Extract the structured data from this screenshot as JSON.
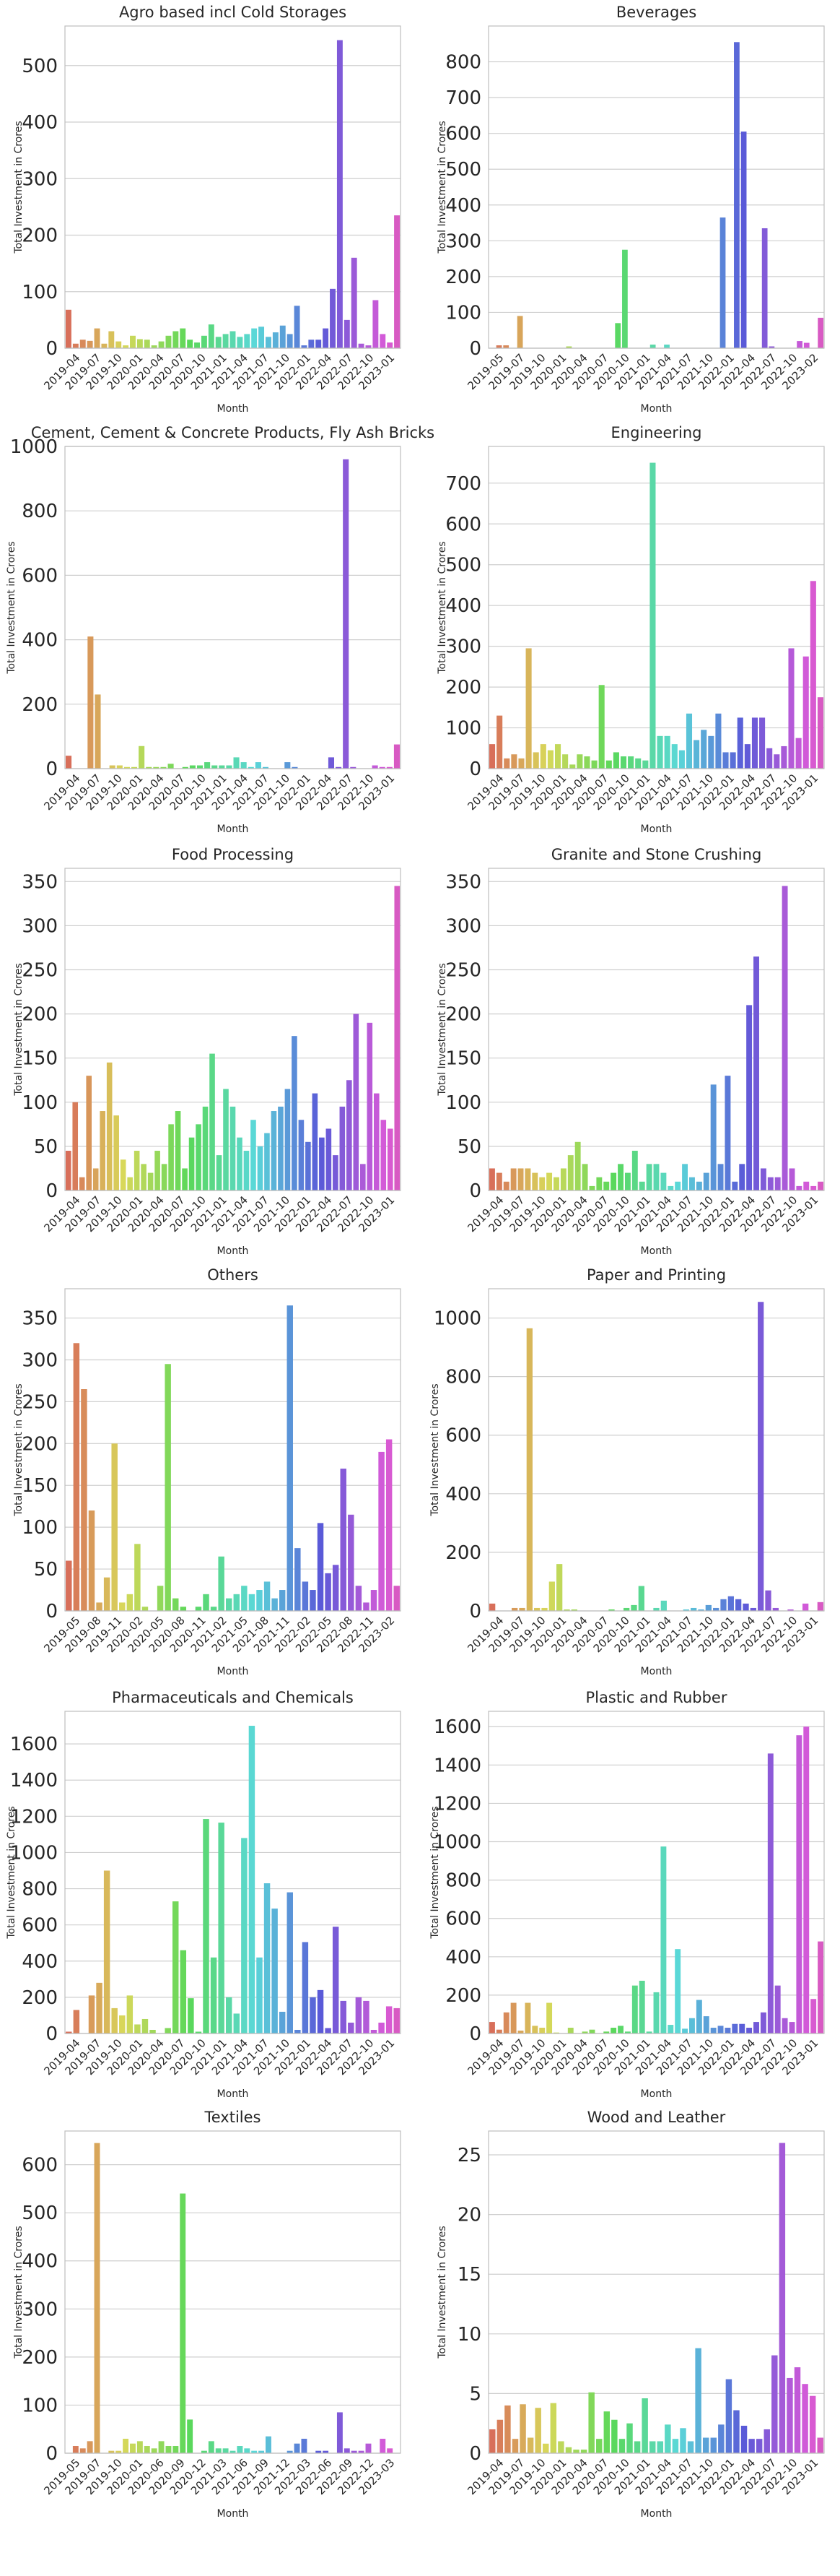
{
  "figure": {
    "ylabel": "Total Investment in Crores",
    "xlabel": "Month"
  },
  "chart_data": [
    {
      "type": "bar",
      "title": "Agro based incl Cold Storages",
      "xlabel": "Month",
      "ylabel": "Total Investment in Crores",
      "ylim": [
        0,
        570
      ],
      "yticks": [
        0,
        100,
        200,
        300,
        400,
        500
      ],
      "tick_labels": [
        "2019-04",
        "2019-07",
        "2019-10",
        "2020-01",
        "2020-04",
        "2020-07",
        "2020-10",
        "2021-01",
        "2021-04",
        "2021-07",
        "2021-10",
        "2022-01",
        "2022-04",
        "2022-07",
        "2022-10",
        "2023-01"
      ],
      "values": [
        68,
        8,
        15,
        13,
        35,
        8,
        30,
        12,
        5,
        22,
        16,
        15,
        5,
        12,
        22,
        30,
        35,
        15,
        10,
        22,
        42,
        20,
        25,
        30,
        20,
        25,
        35,
        38,
        20,
        28,
        40,
        25,
        75,
        5,
        15,
        15,
        35,
        105,
        545,
        50,
        160,
        8,
        5,
        85,
        25,
        10,
        235
      ]
    },
    {
      "type": "bar",
      "title": "Beverages",
      "xlabel": "Month",
      "ylabel": "Total Investment in Crores",
      "ylim": [
        0,
        900
      ],
      "yticks": [
        0,
        100,
        200,
        300,
        400,
        500,
        600,
        700,
        800
      ],
      "tick_labels": [
        "2019-05",
        "2019-07",
        "2019-10",
        "2020-01",
        "2020-04",
        "2020-07",
        "2020-10",
        "2021-01",
        "2021-04",
        "2021-07",
        "2021-10",
        "2022-01",
        "2022-04",
        "2022-07",
        "2022-10",
        "2023-02"
      ],
      "values": [
        0,
        8,
        8,
        0,
        90,
        0,
        0,
        0,
        0,
        0,
        0,
        5,
        0,
        0,
        0,
        0,
        0,
        0,
        70,
        275,
        0,
        0,
        0,
        10,
        0,
        10,
        0,
        0,
        0,
        0,
        0,
        0,
        0,
        365,
        0,
        855,
        605,
        0,
        0,
        335,
        5,
        0,
        0,
        0,
        20,
        15,
        0,
        85
      ]
    },
    {
      "type": "bar",
      "title": "Cement, Cement & Concrete Products, Fly Ash Bricks",
      "xlabel": "Month",
      "ylabel": "Total Investment in Crores",
      "ylim": [
        0,
        1000
      ],
      "yticks": [
        0,
        200,
        400,
        600,
        800,
        1000
      ],
      "tick_labels": [
        "2019-04",
        "2019-07",
        "2019-10",
        "2020-01",
        "2020-04",
        "2020-07",
        "2020-10",
        "2021-01",
        "2021-04",
        "2021-07",
        "2021-10",
        "2022-01",
        "2022-04",
        "2022-07",
        "2022-10",
        "2023-01"
      ],
      "values": [
        40,
        0,
        0,
        410,
        230,
        0,
        10,
        10,
        5,
        5,
        70,
        5,
        5,
        5,
        15,
        0,
        5,
        10,
        10,
        20,
        10,
        10,
        10,
        35,
        20,
        5,
        20,
        5,
        0,
        0,
        20,
        5,
        0,
        0,
        0,
        0,
        35,
        5,
        960,
        5,
        0,
        0,
        10,
        5,
        5,
        75
      ]
    },
    {
      "type": "bar",
      "title": "Engineering",
      "xlabel": "Month",
      "ylabel": "Total Investment in Crores",
      "ylim": [
        0,
        790
      ],
      "yticks": [
        0,
        100,
        200,
        300,
        400,
        500,
        600,
        700
      ],
      "tick_labels": [
        "2019-04",
        "2019-07",
        "2019-10",
        "2020-01",
        "2020-04",
        "2020-07",
        "2020-10",
        "2021-01",
        "2021-04",
        "2021-07",
        "2021-10",
        "2022-01",
        "2022-04",
        "2022-07",
        "2022-10",
        "2023-01"
      ],
      "values": [
        60,
        130,
        25,
        35,
        25,
        295,
        40,
        60,
        45,
        60,
        35,
        10,
        35,
        30,
        20,
        205,
        20,
        40,
        30,
        30,
        25,
        20,
        750,
        80,
        80,
        60,
        45,
        135,
        70,
        95,
        80,
        135,
        40,
        40,
        125,
        60,
        125,
        125,
        50,
        35,
        55,
        295,
        75,
        275,
        460,
        175
      ]
    },
    {
      "type": "bar",
      "title": "Food Processing",
      "xlabel": "Month",
      "ylabel": "Total Investment in Crores",
      "ylim": [
        0,
        365
      ],
      "yticks": [
        0,
        50,
        100,
        150,
        200,
        250,
        300,
        350
      ],
      "tick_labels": [
        "2019-04",
        "2019-07",
        "2019-10",
        "2020-01",
        "2020-04",
        "2020-07",
        "2020-10",
        "2021-01",
        "2021-04",
        "2021-07",
        "2021-10",
        "2022-01",
        "2022-04",
        "2022-07",
        "2022-10",
        "2023-01"
      ],
      "values": [
        45,
        100,
        15,
        130,
        25,
        90,
        145,
        85,
        35,
        15,
        45,
        30,
        20,
        45,
        30,
        75,
        90,
        25,
        60,
        75,
        95,
        155,
        40,
        115,
        95,
        60,
        45,
        80,
        50,
        65,
        90,
        95,
        115,
        175,
        80,
        55,
        110,
        60,
        70,
        40,
        95,
        125,
        200,
        30,
        190,
        110,
        80,
        70,
        345
      ]
    },
    {
      "type": "bar",
      "title": "Granite and Stone Crushing",
      "xlabel": "Month",
      "ylabel": "Total Investment in Crores",
      "ylim": [
        0,
        365
      ],
      "yticks": [
        0,
        50,
        100,
        150,
        200,
        250,
        300,
        350
      ],
      "tick_labels": [
        "2019-04",
        "2019-07",
        "2019-10",
        "2020-01",
        "2020-04",
        "2020-07",
        "2020-10",
        "2021-01",
        "2021-04",
        "2021-07",
        "2021-10",
        "2022-01",
        "2022-04",
        "2022-07",
        "2022-10",
        "2023-01"
      ],
      "values": [
        25,
        20,
        10,
        25,
        25,
        25,
        20,
        15,
        20,
        15,
        25,
        40,
        55,
        30,
        5,
        15,
        10,
        20,
        30,
        20,
        45,
        10,
        30,
        30,
        20,
        5,
        10,
        30,
        15,
        10,
        20,
        120,
        30,
        130,
        10,
        30,
        210,
        265,
        25,
        15,
        15,
        345,
        25,
        5,
        10,
        5,
        10
      ]
    },
    {
      "type": "bar",
      "title": "Others",
      "xlabel": "Month",
      "ylabel": "Total Investment in Crores",
      "ylim": [
        0,
        385
      ],
      "yticks": [
        0,
        50,
        100,
        150,
        200,
        250,
        300,
        350
      ],
      "tick_labels": [
        "2019-05",
        "2019-08",
        "2019-11",
        "2020-02",
        "2020-05",
        "2020-08",
        "2020-11",
        "2021-02",
        "2021-05",
        "2021-08",
        "2021-11",
        "2022-02",
        "2022-05",
        "2022-08",
        "2022-11",
        "2023-02"
      ],
      "values": [
        60,
        320,
        265,
        120,
        10,
        40,
        200,
        10,
        20,
        80,
        5,
        0,
        30,
        295,
        15,
        5,
        0,
        5,
        20,
        5,
        65,
        15,
        20,
        30,
        20,
        25,
        35,
        15,
        25,
        365,
        75,
        35,
        25,
        105,
        45,
        55,
        170,
        115,
        30,
        10,
        25,
        190,
        205,
        30
      ]
    },
    {
      "type": "bar",
      "title": "Paper and Printing",
      "xlabel": "Month",
      "ylabel": "Total Investment in Crores",
      "ylim": [
        0,
        1100
      ],
      "yticks": [
        0,
        200,
        400,
        600,
        800,
        1000
      ],
      "tick_labels": [
        "2019-04",
        "2019-07",
        "2019-10",
        "2020-01",
        "2020-04",
        "2020-07",
        "2020-10",
        "2021-01",
        "2021-04",
        "2021-07",
        "2021-10",
        "2022-01",
        "2022-04",
        "2022-07",
        "2022-10",
        "2023-01"
      ],
      "values": [
        25,
        0,
        0,
        10,
        10,
        965,
        10,
        10,
        100,
        160,
        5,
        5,
        0,
        0,
        0,
        0,
        5,
        0,
        10,
        20,
        85,
        0,
        10,
        35,
        0,
        0,
        5,
        10,
        5,
        20,
        10,
        40,
        50,
        40,
        25,
        10,
        1055,
        70,
        10,
        0,
        5,
        0,
        25,
        0,
        30
      ]
    },
    {
      "type": "bar",
      "title": "Pharmaceuticals and Chemicals",
      "xlabel": "Month",
      "ylabel": "Total Investment in Crores",
      "ylim": [
        0,
        1780
      ],
      "yticks": [
        0,
        200,
        400,
        600,
        800,
        1000,
        1200,
        1400,
        1600
      ],
      "tick_labels": [
        "2019-04",
        "2019-07",
        "2019-10",
        "2020-01",
        "2020-04",
        "2020-07",
        "2020-10",
        "2021-01",
        "2021-04",
        "2021-07",
        "2021-10",
        "2022-01",
        "2022-04",
        "2022-07",
        "2022-10",
        "2023-01"
      ],
      "values": [
        10,
        130,
        0,
        210,
        280,
        900,
        140,
        100,
        210,
        50,
        80,
        20,
        0,
        30,
        730,
        460,
        195,
        10,
        1185,
        420,
        1165,
        200,
        110,
        1080,
        1700,
        420,
        830,
        690,
        120,
        780,
        20,
        505,
        200,
        240,
        30,
        590,
        180,
        60,
        200,
        180,
        20,
        60,
        150,
        140
      ]
    },
    {
      "type": "bar",
      "title": "Plastic and Rubber",
      "xlabel": "Month",
      "ylabel": "Total Investment in Crores",
      "ylim": [
        0,
        1680
      ],
      "yticks": [
        0,
        200,
        400,
        600,
        800,
        1000,
        1200,
        1400,
        1600
      ],
      "tick_labels": [
        "2019-04",
        "2019-07",
        "2019-10",
        "2020-01",
        "2020-04",
        "2020-07",
        "2020-10",
        "2021-01",
        "2021-04",
        "2021-07",
        "2021-10",
        "2022-01",
        "2022-04",
        "2022-07",
        "2022-10",
        "2023-01"
      ],
      "values": [
        60,
        20,
        110,
        160,
        15,
        160,
        40,
        30,
        160,
        5,
        0,
        30,
        0,
        10,
        20,
        0,
        10,
        30,
        40,
        10,
        250,
        275,
        10,
        215,
        975,
        45,
        440,
        25,
        80,
        175,
        90,
        30,
        40,
        30,
        50,
        50,
        30,
        60,
        110,
        1460,
        250,
        80,
        60,
        1555,
        1600,
        180,
        480
      ]
    },
    {
      "type": "bar",
      "title": "Textiles",
      "xlabel": "Month",
      "ylabel": "Total Investment in Crores",
      "ylim": [
        0,
        670
      ],
      "yticks": [
        0,
        100,
        200,
        300,
        400,
        500,
        600
      ],
      "tick_labels": [
        "2019-05",
        "2019-07",
        "2019-10",
        "2020-01",
        "2020-06",
        "2020-09",
        "2020-12",
        "2021-03",
        "2021-06",
        "2021-09",
        "2021-12",
        "2022-03",
        "2022-06",
        "2022-09",
        "2022-12",
        "2023-03"
      ],
      "values": [
        0,
        15,
        10,
        25,
        645,
        0,
        5,
        5,
        30,
        20,
        25,
        15,
        10,
        25,
        15,
        15,
        540,
        70,
        0,
        5,
        25,
        10,
        10,
        5,
        15,
        10,
        5,
        5,
        35,
        0,
        0,
        5,
        20,
        30,
        0,
        5,
        5,
        0,
        85,
        10,
        5,
        5,
        20,
        0,
        30,
        10,
        0
      ]
    },
    {
      "type": "bar",
      "title": "Wood and Leather",
      "xlabel": "Month",
      "ylabel": "Total Investment in Crores",
      "ylim": [
        0,
        27
      ],
      "yticks": [
        0,
        5,
        10,
        15,
        20,
        25
      ],
      "tick_labels": [
        "2019-04",
        "2019-07",
        "2019-10",
        "2020-01",
        "2020-04",
        "2020-07",
        "2020-10",
        "2021-01",
        "2021-04",
        "2021-07",
        "2021-10",
        "2022-01",
        "2022-04",
        "2022-07",
        "2022-10",
        "2023-01"
      ],
      "values": [
        2,
        2.8,
        4,
        1.2,
        4.1,
        1.3,
        3.8,
        0.8,
        4.2,
        1,
        0.5,
        0.3,
        0.3,
        5.1,
        1.2,
        3.5,
        2.8,
        1.2,
        2.5,
        1,
        4.6,
        1,
        1,
        2.4,
        1.2,
        2.1,
        1,
        8.8,
        1.3,
        1.3,
        2.4,
        6.2,
        3.6,
        2.3,
        1.2,
        1.2,
        2,
        8.2,
        26,
        6.3,
        7.2,
        5.8,
        4.8,
        1.3
      ]
    }
  ]
}
